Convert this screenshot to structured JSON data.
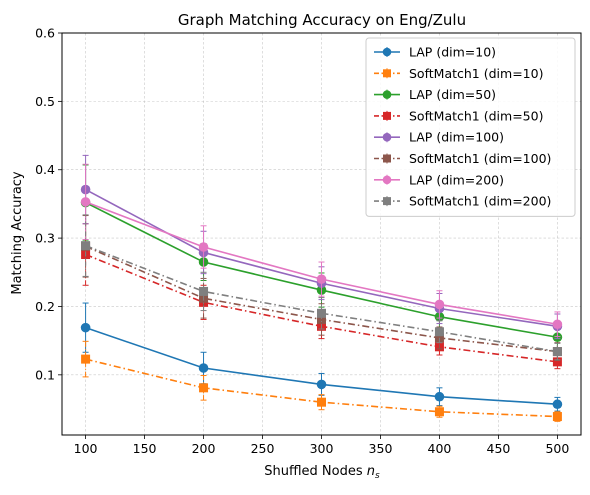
{
  "chart_data": {
    "type": "line",
    "title": "Graph Matching Accuracy on Eng/Zulu",
    "xlabel": "Shuffled Nodes",
    "xlabel_math": "n",
    "xlabel_sub": "s",
    "ylabel": "Matching Accuracy",
    "x": [
      100,
      200,
      300,
      400,
      500
    ],
    "xlim": [
      80,
      520
    ],
    "ylim": [
      0.012,
      0.6
    ],
    "xticks": [
      100,
      150,
      200,
      250,
      300,
      350,
      400,
      450,
      500
    ],
    "yticks": [
      0.1,
      0.2,
      0.3,
      0.4,
      0.5,
      0.6
    ],
    "ytick_labels": [
      "0.1",
      "0.2",
      "0.3",
      "0.4",
      "0.5",
      "0.6"
    ],
    "grid": true,
    "legend_position": "top-right",
    "series": [
      {
        "name": "LAP (dim=10)",
        "color": "#1f77b4",
        "dash": "solid",
        "marker": "circle",
        "values": [
          0.169,
          0.11,
          0.086,
          0.068,
          0.057
        ],
        "errors": [
          0.036,
          0.023,
          0.016,
          0.013,
          0.01
        ]
      },
      {
        "name": "SoftMatch1 (dim=10)",
        "color": "#ff7f0e",
        "dash": "dashdot",
        "marker": "square",
        "values": [
          0.123,
          0.081,
          0.06,
          0.046,
          0.039
        ],
        "errors": [
          0.026,
          0.018,
          0.011,
          0.008,
          0.007
        ]
      },
      {
        "name": "LAP (dim=50)",
        "color": "#2ca02c",
        "dash": "solid",
        "marker": "circle",
        "values": [
          0.352,
          0.265,
          0.224,
          0.185,
          0.155
        ],
        "errors": [
          0.055,
          0.027,
          0.025,
          0.019,
          0.017
        ]
      },
      {
        "name": "SoftMatch1 (dim=50)",
        "color": "#d62728",
        "dash": "dashdot",
        "marker": "square",
        "values": [
          0.276,
          0.206,
          0.171,
          0.141,
          0.119
        ],
        "errors": [
          0.045,
          0.025,
          0.018,
          0.012,
          0.01
        ]
      },
      {
        "name": "LAP (dim=100)",
        "color": "#9467bd",
        "dash": "solid",
        "marker": "circle",
        "values": [
          0.371,
          0.279,
          0.234,
          0.197,
          0.171
        ],
        "errors": [
          0.05,
          0.031,
          0.024,
          0.022,
          0.018
        ]
      },
      {
        "name": "SoftMatch1 (dim=100)",
        "color": "#8c564b",
        "dash": "dashdot",
        "marker": "square",
        "values": [
          0.288,
          0.212,
          0.181,
          0.154,
          0.134
        ],
        "errors": [
          0.045,
          0.029,
          0.023,
          0.016,
          0.013
        ]
      },
      {
        "name": "LAP (dim=200)",
        "color": "#e377c2",
        "dash": "solid",
        "marker": "circle",
        "values": [
          0.353,
          0.287,
          0.24,
          0.203,
          0.174
        ],
        "errors": [
          0.055,
          0.031,
          0.025,
          0.02,
          0.018
        ]
      },
      {
        "name": "SoftMatch1 (dim=200)",
        "color": "#7f7f7f",
        "dash": "dashdot",
        "marker": "square",
        "values": [
          0.289,
          0.222,
          0.19,
          0.163,
          0.134
        ],
        "errors": [
          0.045,
          0.028,
          0.023,
          0.016,
          0.012
        ]
      }
    ]
  }
}
